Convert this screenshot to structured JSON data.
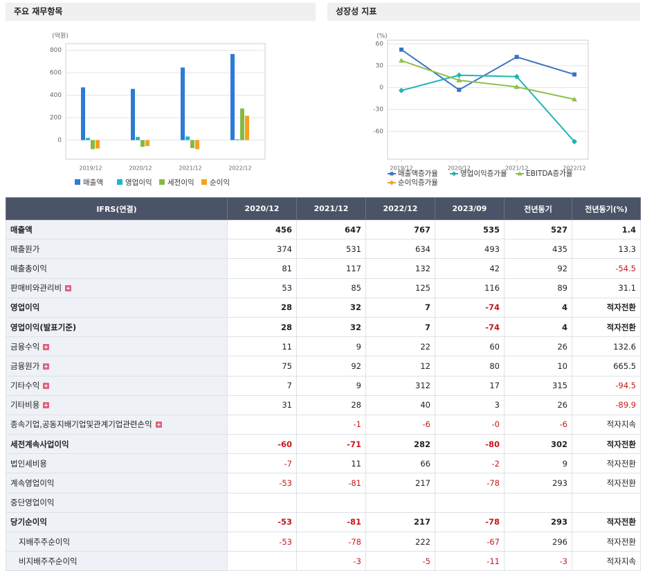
{
  "chart_data": [
    {
      "type": "bar",
      "title": "주요 재무항목",
      "ylabel": "(억원)",
      "categories": [
        "2019/12",
        "2020/12",
        "2021/12",
        "2022/12"
      ],
      "series": [
        {
          "name": "매출액",
          "color": "#2b7bd6",
          "values": [
            470,
            456,
            647,
            767
          ]
        },
        {
          "name": "영업이익",
          "color": "#1cb7c6",
          "values": [
            20,
            28,
            32,
            7
          ]
        },
        {
          "name": "세전이익",
          "color": "#86b944",
          "values": [
            -80,
            -60,
            -71,
            282
          ]
        },
        {
          "name": "순이익",
          "color": "#f5a11f",
          "values": [
            -75,
            -53,
            -81,
            217
          ]
        }
      ],
      "ylim": [
        -170,
        860
      ],
      "yticks": [
        0,
        200,
        400,
        600,
        800
      ],
      "grid": true
    },
    {
      "type": "line",
      "title": "성장성 지표",
      "ylabel": "(%)",
      "categories": [
        "2019/12",
        "2020/12",
        "2021/12",
        "2022/12"
      ],
      "series": [
        {
          "name": "매출액증가율",
          "color": "#3a73c4",
          "values": [
            52,
            -3,
            42,
            18
          ]
        },
        {
          "name": "영업이익증가율",
          "color": "#1fb3b5",
          "values": [
            -4,
            17,
            15,
            -74
          ]
        },
        {
          "name": "EBITDA증가율",
          "color": "#8fbf4d",
          "values": [
            37,
            10,
            1,
            -16
          ]
        },
        {
          "name": "순이익증가율",
          "color": "#efa22e",
          "values": [
            null,
            null,
            null,
            null
          ]
        }
      ],
      "ylim": [
        -98,
        65
      ],
      "yticks": [
        -60,
        -30,
        0,
        30,
        60
      ],
      "grid": true
    }
  ],
  "table": {
    "header": [
      "IFRS(연결)",
      "2020/12",
      "2021/12",
      "2022/12",
      "2023/09",
      "전년동기",
      "전년동기(%)"
    ],
    "rows": [
      {
        "label": "매출액",
        "values": [
          456,
          647,
          767,
          535,
          527,
          1.4
        ]
      },
      {
        "label": "매출원가",
        "values": [
          374,
          531,
          634,
          493,
          435,
          13.3
        ]
      },
      {
        "label": "매출총이익",
        "values": [
          81,
          117,
          132,
          42,
          92,
          -54.5
        ]
      },
      {
        "label": "판매비와관리비",
        "values": [
          53,
          85,
          125,
          116,
          89,
          31.1
        ]
      },
      {
        "label": "영업이익",
        "values": [
          28,
          32,
          7,
          -74,
          4,
          "적자전환"
        ]
      },
      {
        "label": "영업이익(발표기준)",
        "values": [
          28,
          32,
          7,
          -74,
          4,
          "적자전환"
        ]
      },
      {
        "label": "금융수익",
        "values": [
          11,
          9,
          22,
          60,
          26,
          132.6
        ]
      },
      {
        "label": "금융원가",
        "values": [
          75,
          92,
          12,
          80,
          10,
          665.5
        ]
      },
      {
        "label": "기타수익",
        "values": [
          7,
          9,
          312,
          17,
          315,
          -94.5
        ]
      },
      {
        "label": "기타비용",
        "values": [
          31,
          28,
          40,
          3,
          26,
          -89.9
        ]
      },
      {
        "label": "종속기업,공동지배기업및관계기업관련손익",
        "values": [
          null,
          -1,
          -6,
          "-0",
          -6,
          "적자지속"
        ]
      },
      {
        "label": "세전계속사업이익",
        "values": [
          -60,
          -71,
          282,
          -80,
          302,
          "적자전환"
        ]
      },
      {
        "label": "법인세비용",
        "values": [
          -7,
          11,
          66,
          -2,
          9,
          "적자전환"
        ]
      },
      {
        "label": "계속영업이익",
        "values": [
          -53,
          -81,
          217,
          -78,
          293,
          "적자전환"
        ]
      },
      {
        "label": "중단영업이익",
        "values": [
          null,
          null,
          null,
          null,
          null,
          null
        ]
      },
      {
        "label": "당기순이익",
        "values": [
          -53,
          -81,
          217,
          -78,
          293,
          "적자전환"
        ]
      },
      {
        "label": "지배주주순이익",
        "values": [
          -53,
          -78,
          222,
          -67,
          296,
          "적자전환"
        ]
      },
      {
        "label": "비지배주주순이익",
        "values": [
          null,
          -3,
          -5,
          -11,
          -3,
          "적자지속"
        ]
      }
    ]
  }
}
